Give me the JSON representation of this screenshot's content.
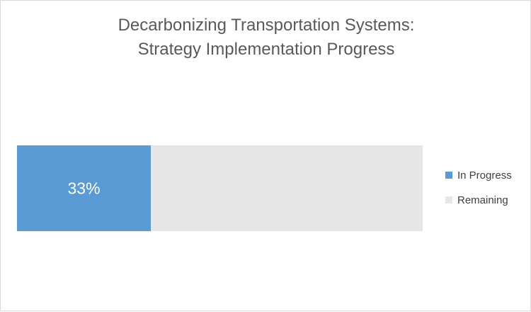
{
  "chart_data": {
    "type": "bar",
    "orientation": "horizontal",
    "stacked": true,
    "title_lines": [
      "Decarbonizing Transportation Systems:",
      "Strategy Implementation Progress"
    ],
    "categories": [
      ""
    ],
    "series": [
      {
        "name": "In Progress",
        "values": [
          33
        ],
        "color": "#5b9bd5",
        "data_label": "33%"
      },
      {
        "name": "Remaining",
        "values": [
          67
        ],
        "color": "#e7e6e6"
      }
    ],
    "xlim": [
      0,
      100
    ],
    "grid": false,
    "legend_position": "right"
  }
}
